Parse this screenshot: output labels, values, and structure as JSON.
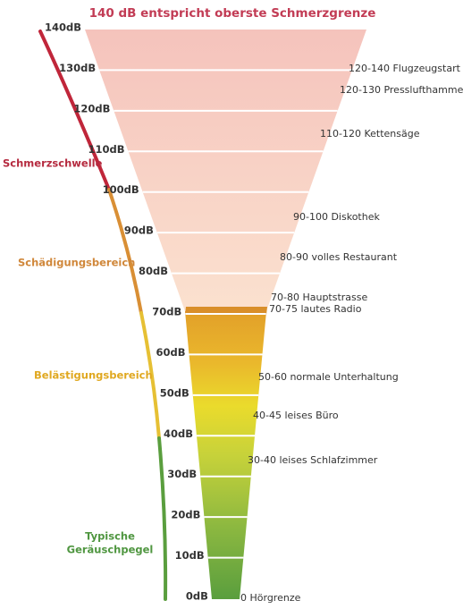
{
  "title": "140 dB entspricht oberste Schmerzgrenze",
  "levels": [
    "140dB",
    "130dB",
    "120dB",
    "110dB",
    "100dB",
    "90dB",
    "80dB",
    "70dB",
    "60dB",
    "50dB",
    "40dB",
    "30dB",
    "20dB",
    "10dB",
    "0dB"
  ],
  "sources": [
    "120-140 Flugzeugstart",
    "120-130 Presslufthammer",
    "110-120 Kettensäge",
    "90-100 Diskothek",
    "80-90 volles Restaurant",
    "70-80 Hauptstrasse",
    "70-75 lautes Radio",
    "50-60 normale Unterhaltung",
    "40-45 leises Büro",
    "30-40 leises Schlafzimmer",
    "0 Hörgrenze"
  ],
  "zones": {
    "pain": "Schmerzschwelle",
    "damage": "Schädigungsbereich",
    "nuisance": "Belästigungsbereich",
    "typical": [
      "Typische",
      "Geräuschpegel"
    ]
  }
}
